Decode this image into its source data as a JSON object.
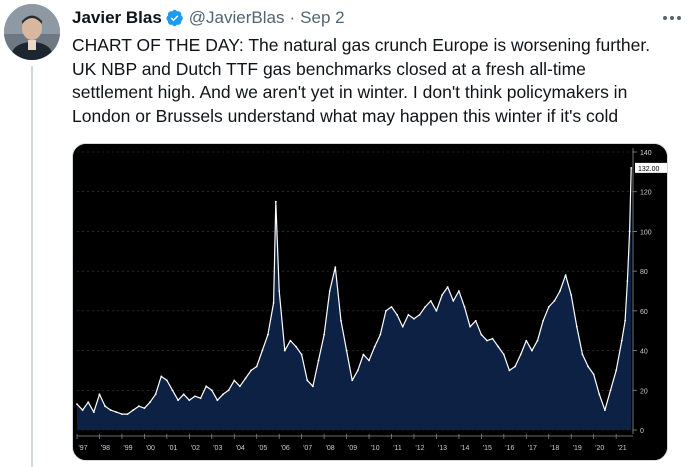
{
  "tweet": {
    "author_name": "Javier Blas",
    "handle": "@JavierBlas",
    "separator": "·",
    "date": "Sep 2",
    "text_lines": [
      "CHART OF THE DAY: The natural gas crunch Europe is worsening further.",
      "UK NBP and Dutch TTF gas benchmarks closed at a fresh all-time",
      "settlement high. And we aren't yet in winter. I don't think policymakers in",
      "London or Brussels understand what may happen this winter if it's cold"
    ]
  },
  "icons": {
    "verified": "verified-badge-icon",
    "more": "more-options-icon"
  },
  "colors": {
    "verified": "#1d9bf0",
    "chart_fill": "#0d2144",
    "chart_line": "#ffffff",
    "chart_bg": "#000000"
  },
  "chart_data": {
    "type": "area",
    "x_tick_labels": [
      "'97",
      "'98",
      "'99",
      "'00",
      "'01",
      "'02",
      "'03",
      "'04",
      "'05",
      "'06",
      "'07",
      "'08",
      "'09",
      "'10",
      "'11",
      "'12",
      "'13",
      "'14",
      "'15",
      "'16",
      "'17",
      "'18",
      "'19",
      "'20",
      "'21"
    ],
    "y_tick_labels": [
      "0",
      "20",
      "40",
      "60",
      "80",
      "100",
      "120",
      "140"
    ],
    "ylim": [
      0,
      140
    ],
    "last_value_label": "132.00",
    "x": [
      1997.0,
      1997.25,
      1997.5,
      1997.75,
      1998.0,
      1998.25,
      1998.5,
      1998.75,
      1999.0,
      1999.25,
      1999.5,
      1999.75,
      2000.0,
      2000.25,
      2000.5,
      2000.75,
      2001.0,
      2001.25,
      2001.5,
      2001.75,
      2002.0,
      2002.25,
      2002.5,
      2002.75,
      2003.0,
      2003.25,
      2003.5,
      2003.75,
      2004.0,
      2004.25,
      2004.5,
      2004.75,
      2005.0,
      2005.25,
      2005.5,
      2005.75,
      2005.85,
      2006.0,
      2006.25,
      2006.5,
      2006.75,
      2007.0,
      2007.25,
      2007.5,
      2007.75,
      2008.0,
      2008.25,
      2008.5,
      2008.75,
      2009.0,
      2009.25,
      2009.5,
      2009.75,
      2010.0,
      2010.25,
      2010.5,
      2010.75,
      2011.0,
      2011.25,
      2011.5,
      2011.75,
      2012.0,
      2012.25,
      2012.5,
      2012.75,
      2013.0,
      2013.25,
      2013.5,
      2013.75,
      2014.0,
      2014.25,
      2014.5,
      2014.75,
      2015.0,
      2015.25,
      2015.5,
      2015.75,
      2016.0,
      2016.25,
      2016.5,
      2016.75,
      2017.0,
      2017.25,
      2017.5,
      2017.75,
      2018.0,
      2018.25,
      2018.5,
      2018.75,
      2019.0,
      2019.25,
      2019.5,
      2019.75,
      2020.0,
      2020.25,
      2020.5,
      2020.75,
      2021.0,
      2021.25,
      2021.4,
      2021.5,
      2021.6,
      2021.67
    ],
    "values": [
      13,
      10,
      14,
      9,
      18,
      12,
      10,
      9,
      8,
      8,
      10,
      12,
      11,
      14,
      18,
      27,
      25,
      20,
      15,
      18,
      15,
      17,
      16,
      22,
      20,
      15,
      18,
      20,
      25,
      22,
      26,
      30,
      32,
      40,
      48,
      64,
      115,
      70,
      40,
      45,
      42,
      38,
      25,
      22,
      35,
      48,
      70,
      82,
      55,
      40,
      25,
      30,
      38,
      35,
      42,
      48,
      60,
      62,
      58,
      52,
      58,
      56,
      58,
      62,
      65,
      60,
      68,
      72,
      65,
      70,
      62,
      52,
      55,
      48,
      45,
      46,
      42,
      38,
      30,
      32,
      38,
      45,
      40,
      45,
      55,
      62,
      65,
      70,
      78,
      68,
      52,
      38,
      32,
      28,
      18,
      10,
      20,
      30,
      45,
      55,
      75,
      100,
      132
    ]
  }
}
